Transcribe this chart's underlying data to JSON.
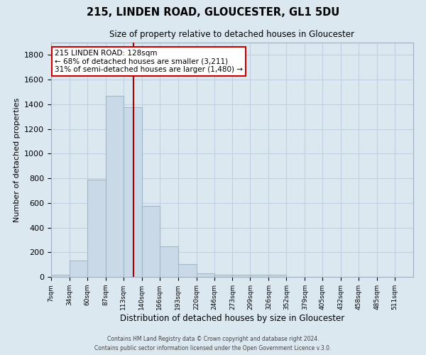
{
  "title": "215, LINDEN ROAD, GLOUCESTER, GL1 5DU",
  "subtitle": "Size of property relative to detached houses in Gloucester",
  "xlabel": "Distribution of detached houses by size in Gloucester",
  "ylabel": "Number of detached properties",
  "bin_edges": [
    7,
    34,
    60,
    87,
    113,
    140,
    166,
    193,
    220,
    246,
    273,
    299,
    326,
    352,
    379,
    405,
    432,
    458,
    485,
    511,
    538
  ],
  "bar_heights": [
    15,
    130,
    790,
    1470,
    1375,
    575,
    250,
    105,
    30,
    20,
    15,
    20,
    15,
    0,
    0,
    0,
    0,
    0,
    0,
    0
  ],
  "bar_color": "#c9d9e8",
  "bar_edgecolor": "#a0b8cc",
  "bar_linewidth": 0.8,
  "grid_color": "#c0d0e0",
  "background_color": "#dce8f0",
  "vline_x": 128,
  "vline_color": "#aa0000",
  "vline_linewidth": 1.5,
  "annotation_line1": "215 LINDEN ROAD: 128sqm",
  "annotation_line2": "← 68% of detached houses are smaller (3,211)",
  "annotation_line3": "31% of semi-detached houses are larger (1,480) →",
  "annotation_box_color": "#ffffff",
  "annotation_border_color": "#cc0000",
  "ylim": [
    0,
    1900
  ],
  "yticks": [
    0,
    200,
    400,
    600,
    800,
    1000,
    1200,
    1400,
    1600,
    1800
  ],
  "footer1": "Contains HM Land Registry data © Crown copyright and database right 2024.",
  "footer2": "Contains public sector information licensed under the Open Government Licence v.3.0."
}
